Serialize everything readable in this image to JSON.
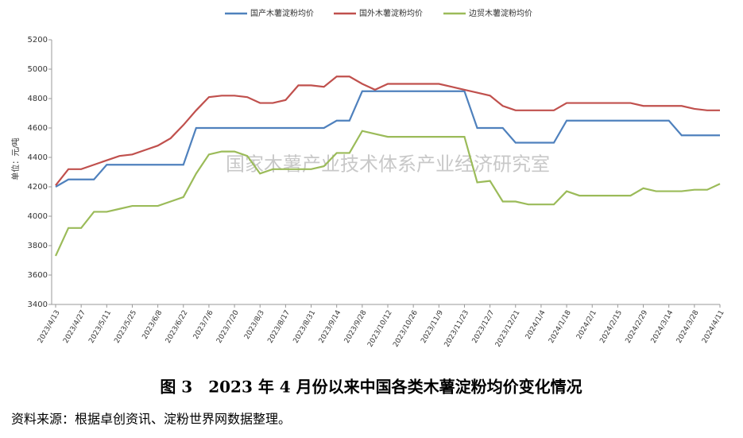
{
  "chart_data": {
    "type": "line",
    "y_axis_label": "单位：元/吨",
    "watermark": "国家木薯产业技术体系产业经济研究室",
    "caption": "图 3　2023 年 4 月份以来中国各类木薯淀粉均价变化情况",
    "source": "资料来源：根据卓创资讯、淀粉世界网数据整理。",
    "categories": [
      "2023/4/13",
      null,
      "2023/4/27",
      null,
      "2023/5/11",
      null,
      "2023/5/25",
      null,
      "2023/6/8",
      null,
      "2023/6/22",
      null,
      "2023/7/6",
      null,
      "2023/7/20",
      null,
      "2023/8/3",
      null,
      "2023/8/17",
      null,
      "2023/8/31",
      null,
      "2023/9/14",
      null,
      "2023/9/28",
      null,
      "2023/10/12",
      null,
      "2023/10/26",
      null,
      "2023/11/9",
      null,
      "2023/11/23",
      null,
      "2023/12/7",
      null,
      "2023/12/21",
      null,
      "2024/1/4",
      null,
      "2024/1/18",
      null,
      "2024/2/1",
      null,
      "2024/2/15",
      null,
      "2024/2/29",
      null,
      "2024/3/14",
      null,
      "2024/3/28",
      null,
      "2024/4/11"
    ],
    "series": [
      {
        "name": "国产木薯淀粉均价",
        "color": "#4f81bd",
        "values": [
          4200,
          4250,
          4250,
          4250,
          4350,
          4350,
          4350,
          4350,
          4350,
          4350,
          4350,
          4600,
          4600,
          4600,
          4600,
          4600,
          4600,
          4600,
          4600,
          4600,
          4600,
          4600,
          4650,
          4650,
          4850,
          4850,
          4850,
          4850,
          4850,
          4850,
          4850,
          4850,
          4850,
          4600,
          4600,
          4600,
          4500,
          4500,
          4500,
          4500,
          4650,
          4650,
          4650,
          4650,
          4650,
          4650,
          4650,
          4650,
          4650,
          4550,
          4550,
          4550,
          4550
        ]
      },
      {
        "name": "国外木薯淀粉均价",
        "color": "#c0504d",
        "values": [
          4210,
          4320,
          4320,
          4350,
          4380,
          4410,
          4420,
          4450,
          4480,
          4530,
          4620,
          4720,
          4810,
          4820,
          4820,
          4810,
          4770,
          4770,
          4790,
          4890,
          4890,
          4880,
          4950,
          4950,
          4900,
          4860,
          4900,
          4900,
          4900,
          4900,
          4900,
          4880,
          4860,
          4840,
          4820,
          4750,
          4720,
          4720,
          4720,
          4720,
          4770,
          4770,
          4770,
          4770,
          4770,
          4770,
          4750,
          4750,
          4750,
          4750,
          4730,
          4720,
          4720
        ]
      },
      {
        "name": "边贸木薯淀粉均价",
        "color": "#9bbb59",
        "values": [
          3730,
          3920,
          3920,
          4030,
          4030,
          4050,
          4070,
          4070,
          4070,
          4100,
          4130,
          4290,
          4420,
          4440,
          4440,
          4410,
          4290,
          4320,
          4320,
          4320,
          4320,
          4340,
          4430,
          4430,
          4580,
          4560,
          4540,
          4540,
          4540,
          4540,
          4540,
          4540,
          4540,
          4230,
          4240,
          4100,
          4100,
          4080,
          4080,
          4080,
          4170,
          4140,
          4140,
          4140,
          4140,
          4140,
          4190,
          4170,
          4170,
          4170,
          4180,
          4180,
          4220
        ]
      }
    ],
    "ylim": [
      3400,
      5200
    ],
    "yticks": [
      3400,
      3600,
      3800,
      4000,
      4200,
      4400,
      4600,
      4800,
      5000,
      5200
    ],
    "grid": false
  }
}
